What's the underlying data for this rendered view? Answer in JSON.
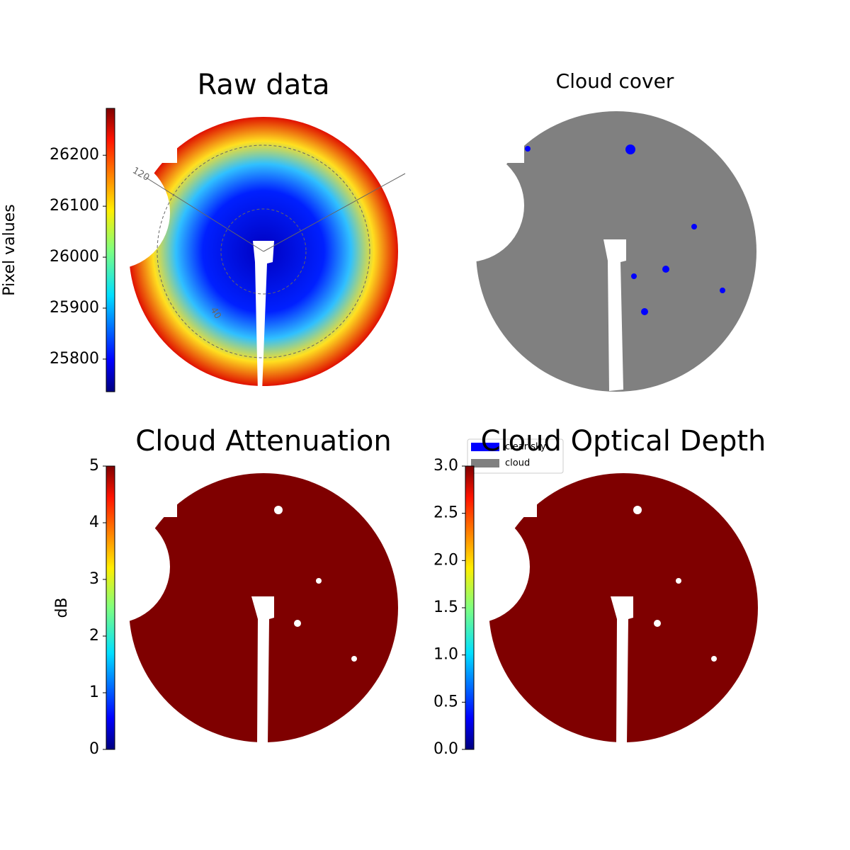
{
  "chart_data": [
    {
      "type": "image",
      "title": "Raw data",
      "colormap": "jet",
      "ylabel": "Pixel values",
      "ylim": [
        25736,
        26292
      ],
      "yticks": [
        25800,
        25900,
        26000,
        26100,
        26200
      ],
      "annotations": [
        "120",
        "40"
      ]
    },
    {
      "type": "image",
      "title": "Cloud cover",
      "legend": [
        {
          "name": "clear sky",
          "color": "#0000ff"
        },
        {
          "name": "cloud",
          "color": "#808080"
        }
      ]
    },
    {
      "type": "image",
      "title": "Cloud Attenuation",
      "colormap": "jet",
      "ylabel": "dB",
      "ylim": [
        0,
        5
      ],
      "yticks": [
        0,
        1,
        2,
        3,
        4,
        5
      ]
    },
    {
      "type": "image",
      "title": "Cloud Optical Depth",
      "colormap": "jet",
      "ylim": [
        0,
        3
      ],
      "yticks": [
        {
          "value": 0,
          "label": "0.0"
        },
        {
          "value": 0.5,
          "label": "0.5"
        },
        {
          "value": 1,
          "label": "1.0"
        },
        {
          "value": 1.5,
          "label": "1.5"
        },
        {
          "value": 2,
          "label": "2.0"
        },
        {
          "value": 2.5,
          "label": "2.5"
        },
        {
          "value": 3,
          "label": "3.0"
        }
      ]
    }
  ]
}
